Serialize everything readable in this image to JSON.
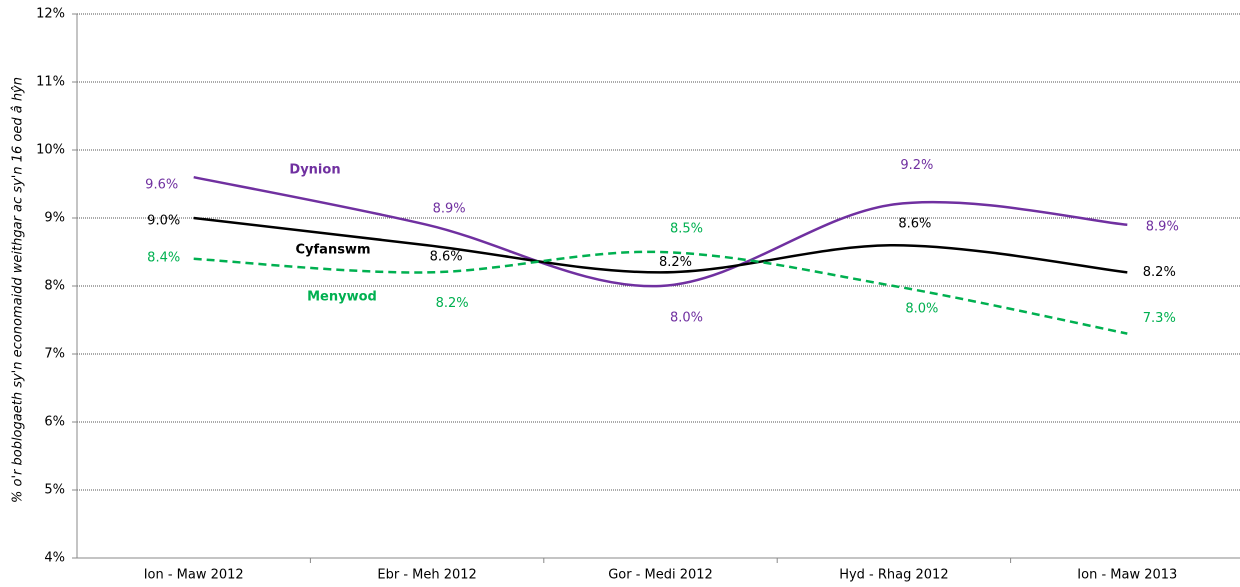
{
  "chart_data": {
    "type": "line",
    "y_label": "% o'r boblogaeth sy'n economaidd weithgar ac sy'n 16 oed â hŷn",
    "categories": [
      "Ion - Maw 2012",
      "Ebr - Meh 2012",
      "Gor - Medi 2012",
      "Hyd - Rhag 2012",
      "Ion - Maw 2013"
    ],
    "series": [
      {
        "name": "Dynion",
        "color": "#7030a0",
        "dash": false,
        "values": [
          9.6,
          8.9,
          8.0,
          9.2,
          8.9
        ],
        "value_labels": [
          "9.6%",
          "8.9%",
          "8.0%",
          "9.2%",
          "8.9%"
        ]
      },
      {
        "name": "Cyfanswm",
        "color": "#000000",
        "dash": false,
        "values": [
          9.0,
          8.6,
          8.2,
          8.6,
          8.2
        ],
        "value_labels": [
          "9.0%",
          "8.6%",
          "8.2%",
          "8.6%",
          "8.2%"
        ]
      },
      {
        "name": "Menywod",
        "color": "#00b050",
        "dash": true,
        "values": [
          8.4,
          8.2,
          8.5,
          8.0,
          7.3
        ],
        "value_labels": [
          "8.4%",
          "8.2%",
          "8.5%",
          "8.0%",
          "7.3%"
        ]
      }
    ],
    "ylim": [
      4,
      12
    ],
    "yticks": [
      {
        "value": 4,
        "label": "4%"
      },
      {
        "value": 5,
        "label": "5%"
      },
      {
        "value": 6,
        "label": "6%"
      },
      {
        "value": 7,
        "label": "7%"
      },
      {
        "value": 8,
        "label": "8%"
      },
      {
        "value": 9,
        "label": "9%"
      },
      {
        "value": 10,
        "label": "10%"
      },
      {
        "value": 11,
        "label": "11%"
      },
      {
        "value": 12,
        "label": "12%"
      }
    ],
    "grid": true
  }
}
